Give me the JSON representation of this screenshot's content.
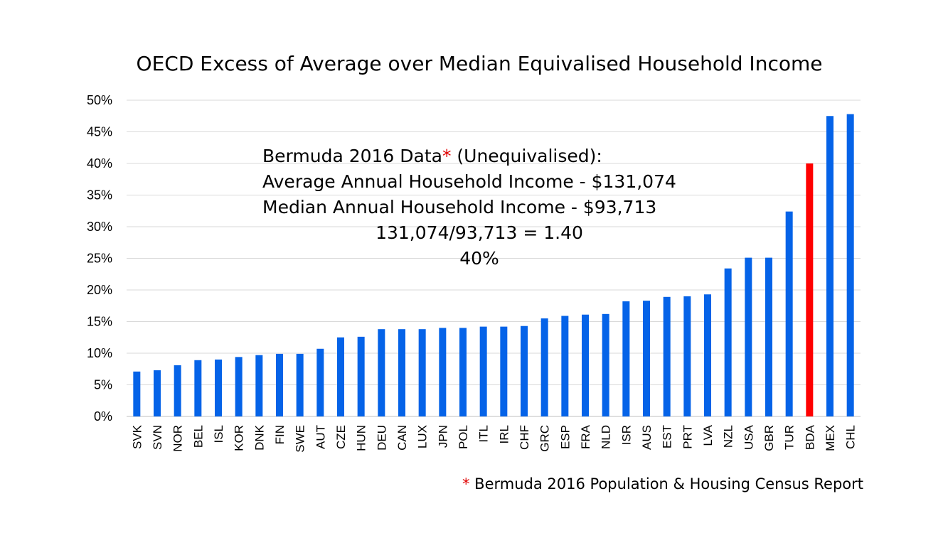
{
  "chart_data": {
    "type": "bar",
    "title": "OECD Excess of Average over Median Equivalised Household Income",
    "xlabel": "",
    "ylabel": "",
    "ylim": [
      0,
      50
    ],
    "yticks": [
      "0%",
      "5%",
      "10%",
      "15%",
      "20%",
      "25%",
      "30%",
      "35%",
      "40%",
      "45%",
      "50%"
    ],
    "grid": true,
    "categories": [
      "SVK",
      "SVN",
      "NOR",
      "BEL",
      "ISL",
      "KOR",
      "DNK",
      "FIN",
      "SWE",
      "AUT",
      "CZE",
      "HUN",
      "DEU",
      "CAN",
      "LUX",
      "JPN",
      "POL",
      "ITL",
      "IRL",
      "CHF",
      "GRC",
      "ESP",
      "FRA",
      "NLD",
      "ISR",
      "AUS",
      "EST",
      "PRT",
      "LVA",
      "NZL",
      "USA",
      "GBR",
      "TUR",
      "BDA",
      "MEX",
      "CHL"
    ],
    "values": [
      7.1,
      7.3,
      8.1,
      8.9,
      9.0,
      9.4,
      9.7,
      9.9,
      9.9,
      10.7,
      12.5,
      12.6,
      13.8,
      13.8,
      13.8,
      14.0,
      14.0,
      14.2,
      14.2,
      14.3,
      15.5,
      15.9,
      16.1,
      16.2,
      18.2,
      18.3,
      18.9,
      19.0,
      19.3,
      23.4,
      25.1,
      25.1,
      32.4,
      40.0,
      47.5,
      47.8
    ],
    "colors": {
      "default": "#0563e8",
      "highlight": "#ff0000",
      "grid": "#d9d9d9",
      "axis": "#bfbfbf"
    },
    "highlight_category": "BDA"
  },
  "annotation": {
    "line1_pre": "Bermuda 2016 Data",
    "line1_star": "*",
    "line1_post": " (Unequivalised):",
    "line2": "Average Annual Household Income - $131,074",
    "line3": "Median Annual Household Income - $93,713",
    "line4": "131,074/93,713 = 1.40",
    "line5": "40%"
  },
  "footnote": {
    "star": "*",
    "text": " Bermuda 2016 Population & Housing Census Report"
  }
}
